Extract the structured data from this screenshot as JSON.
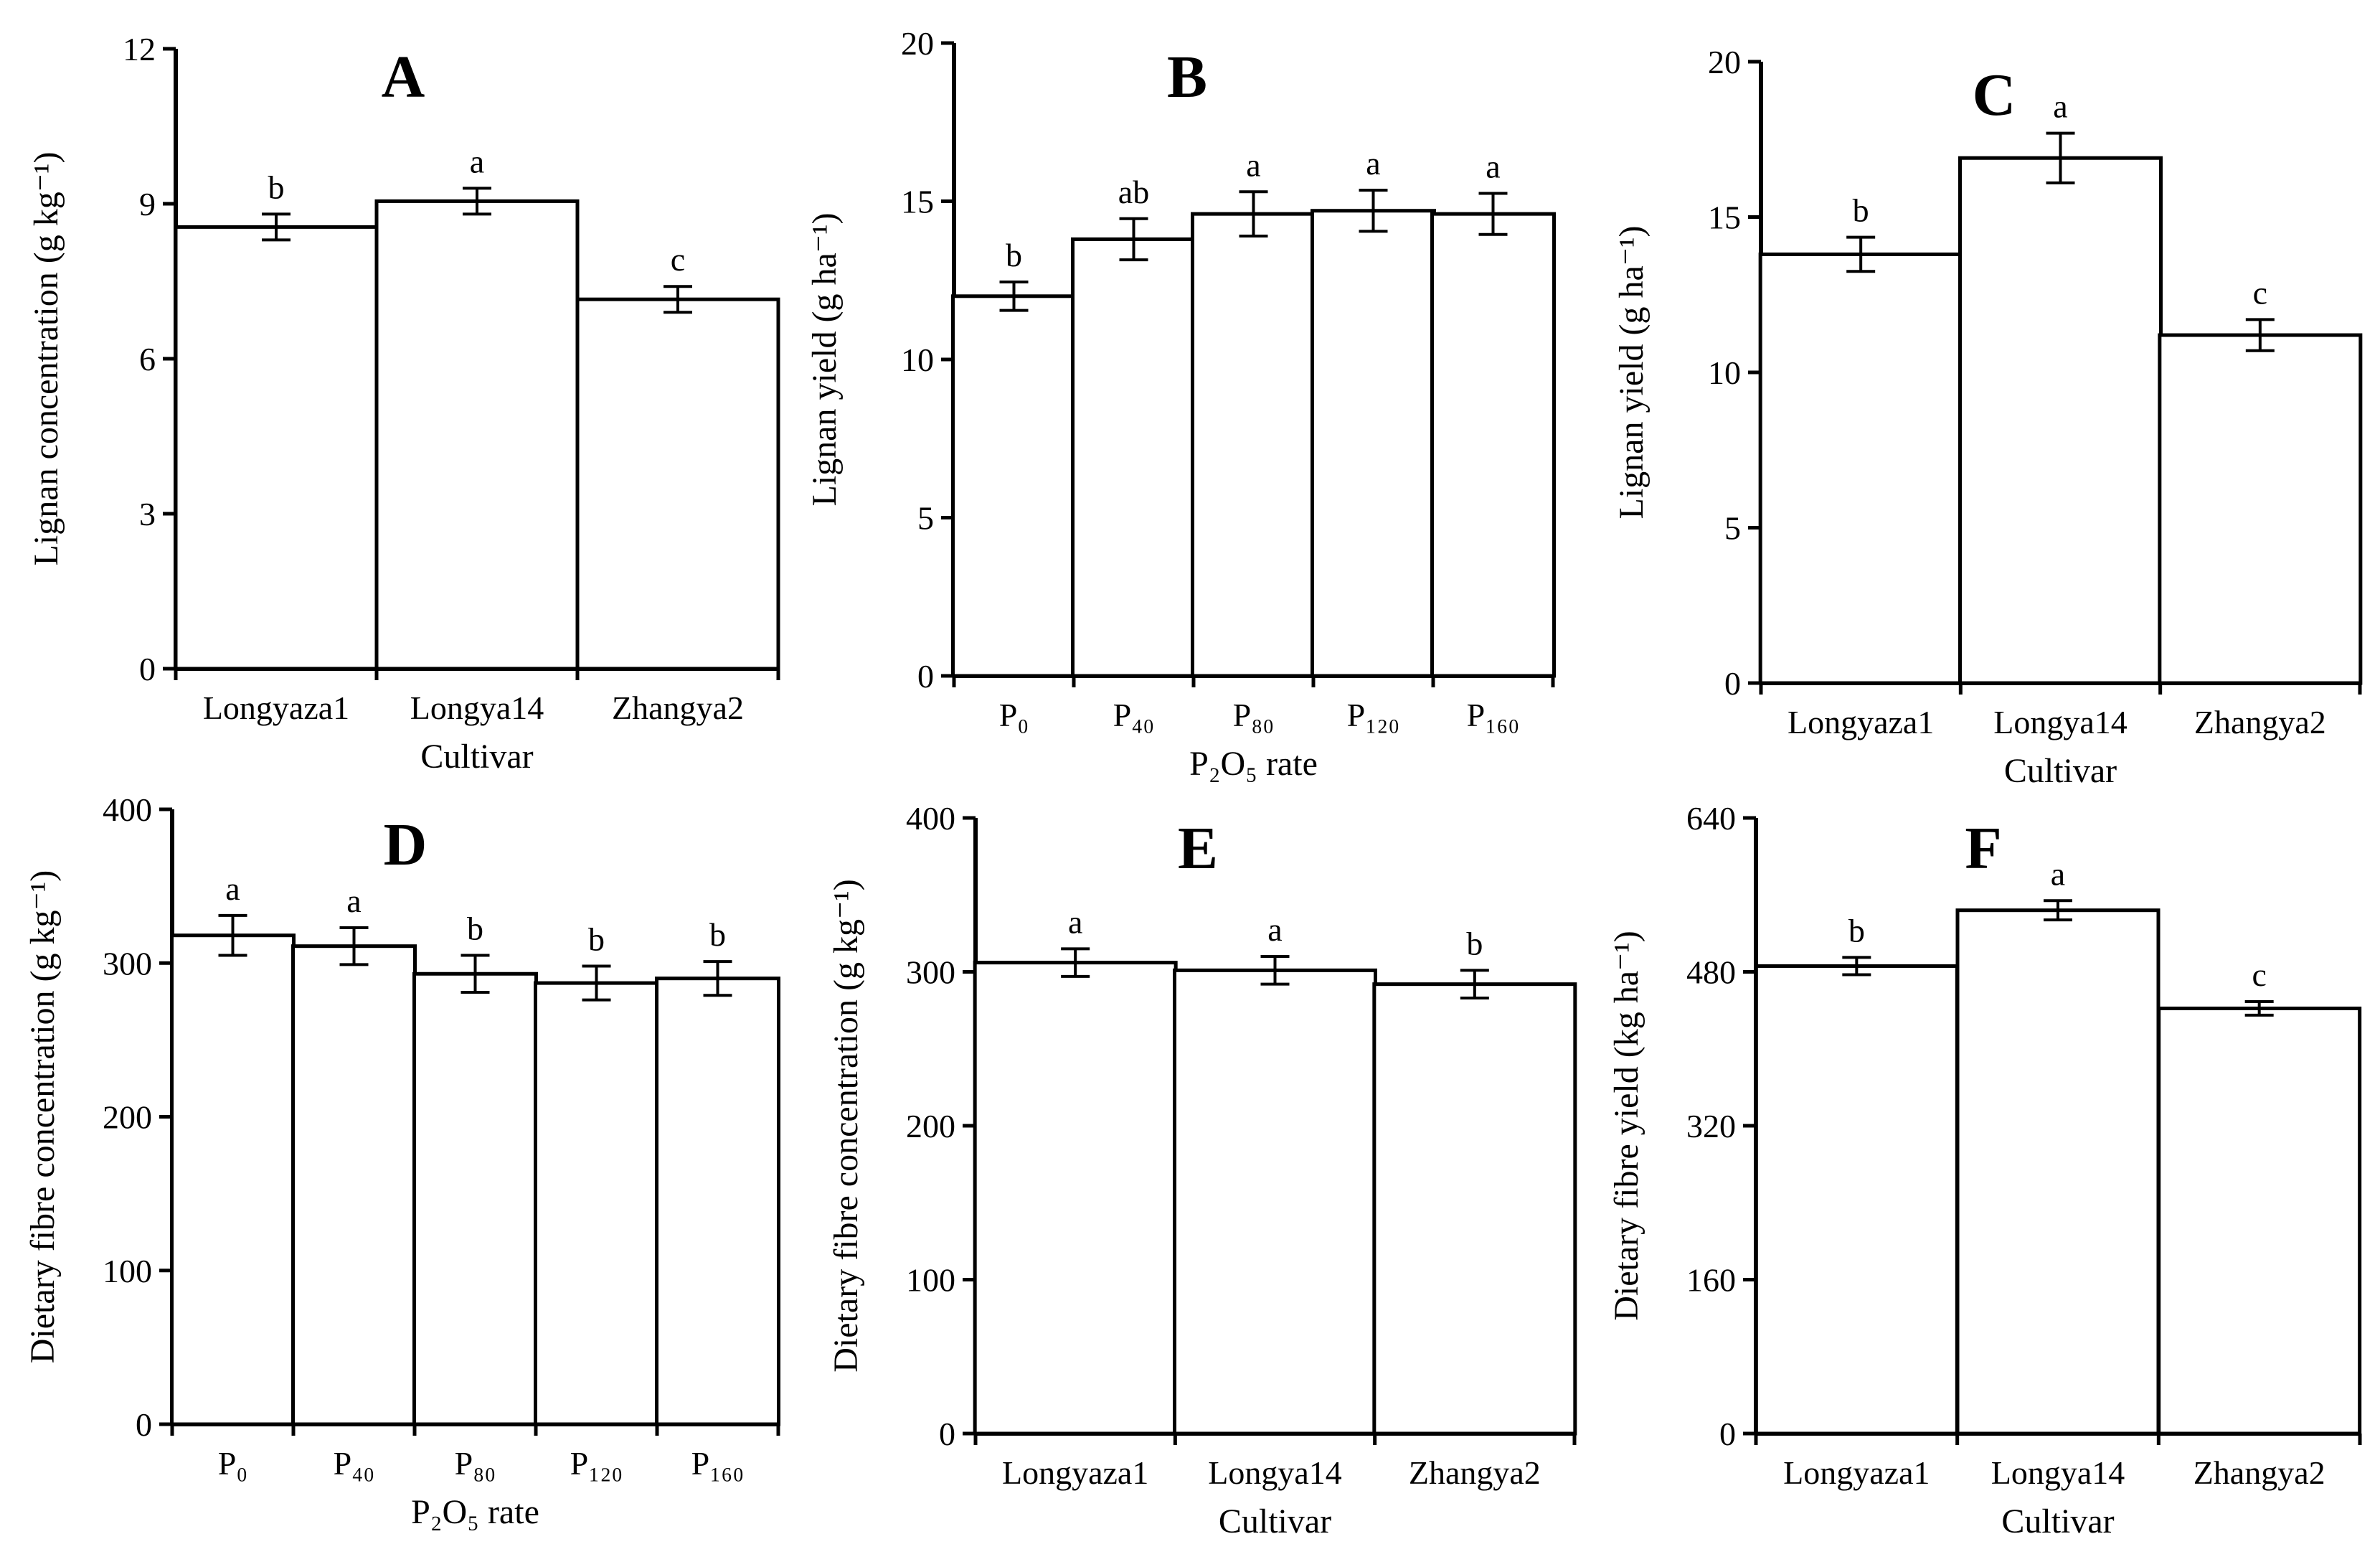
{
  "chart_data": [
    {
      "type": "bar",
      "title": "A",
      "xlabel": "Cultivar",
      "ylabel": "Lignan concentration (g kg⁻¹)",
      "ylim": [
        0,
        12
      ],
      "yticks": [
        "0",
        "3",
        "6",
        "9",
        "12"
      ],
      "categories": [
        "Longyaza1",
        "Longya14",
        "Zhangya2"
      ],
      "values": [
        8.55,
        9.05,
        7.15
      ],
      "errors": [
        0.25,
        0.25,
        0.25
      ],
      "labels": [
        "b",
        "a",
        "c"
      ]
    },
    {
      "type": "bar",
      "title": "B",
      "xlabel": "P₂O₅ rate",
      "ylabel": "Lignan yield (g ha⁻¹)",
      "ylim": [
        0,
        20
      ],
      "yticks": [
        "0",
        "5",
        "10",
        "15",
        "20"
      ],
      "categories": [
        "P₀",
        "P₄₀",
        "P₈₀",
        "P₁₂₀",
        "P₁₆₀"
      ],
      "values": [
        12.0,
        13.8,
        14.6,
        14.7,
        14.6
      ],
      "errors": [
        0.45,
        0.65,
        0.7,
        0.65,
        0.65
      ],
      "labels": [
        "b",
        "ab",
        "a",
        "a",
        "a"
      ]
    },
    {
      "type": "bar",
      "title": "C",
      "xlabel": "Cultivar",
      "ylabel": "Lignan yield (g ha⁻¹)",
      "ylim": [
        0,
        20
      ],
      "yticks": [
        "0",
        "5",
        "10",
        "15",
        "20"
      ],
      "categories": [
        "Longyaza1",
        "Longya14",
        "Zhangya2"
      ],
      "values": [
        13.8,
        16.9,
        11.2
      ],
      "errors": [
        0.55,
        0.8,
        0.5
      ],
      "labels": [
        "b",
        "a",
        "c"
      ]
    },
    {
      "type": "bar",
      "title": "D",
      "xlabel": "P₂O₅ rate",
      "ylabel": "Dietary fibre concentration (g kg⁻¹)",
      "ylim": [
        0,
        400
      ],
      "yticks": [
        "0",
        "100",
        "200",
        "300",
        "400"
      ],
      "categories": [
        "P₀",
        "P₄₀",
        "P₈₀",
        "P₁₂₀",
        "P₁₆₀"
      ],
      "values": [
        318,
        311,
        293,
        287,
        290
      ],
      "errors": [
        13,
        12,
        12,
        11,
        11
      ],
      "labels": [
        "a",
        "a",
        "b",
        "b",
        "b"
      ]
    },
    {
      "type": "bar",
      "title": "E",
      "xlabel": "Cultivar",
      "ylabel": "Dietary fibre concentration (g kg⁻¹)",
      "ylim": [
        0,
        400
      ],
      "yticks": [
        "0",
        "100",
        "200",
        "300",
        "400"
      ],
      "categories": [
        "Longyaza1",
        "Longya14",
        "Zhangya2"
      ],
      "values": [
        306,
        301,
        292
      ],
      "errors": [
        9,
        9,
        9
      ],
      "labels": [
        "a",
        "a",
        "b"
      ]
    },
    {
      "type": "bar",
      "title": "F",
      "xlabel": "Cultivar",
      "ylabel": "Dietary fibre yield (kg ha⁻¹)",
      "ylim": [
        0,
        640
      ],
      "yticks": [
        "0",
        "160",
        "320",
        "480",
        "640"
      ],
      "categories": [
        "Longyaza1",
        "Longya14",
        "Zhangya2"
      ],
      "values": [
        486,
        544,
        442
      ],
      "errors": [
        9,
        10,
        7
      ],
      "labels": [
        "b",
        "a",
        "c"
      ]
    }
  ]
}
